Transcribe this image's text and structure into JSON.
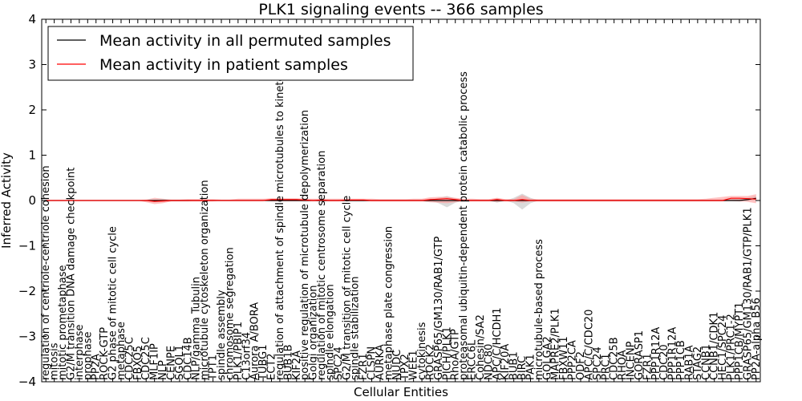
{
  "chart_data": {
    "type": "line",
    "title": "PLK1 signaling events -- 366 samples",
    "xlabel": "Cellular Entities",
    "ylabel": "Inferred Activity",
    "ylim": [
      -4,
      4
    ],
    "yticks": [
      -4,
      -3,
      -2,
      -1,
      0,
      1,
      2,
      3,
      4
    ],
    "ytick_labels": [
      "−4",
      "−3",
      "−2",
      "−1",
      "0",
      "1",
      "2",
      "3",
      "4"
    ],
    "legend": {
      "position": "top-left",
      "entries": [
        {
          "label": "Mean activity in all permuted samples",
          "color": "#000000"
        },
        {
          "label": "Mean activity in patient samples",
          "color": "#ff0000"
        }
      ]
    },
    "categories": [
      "regulation of centriole-centriole cohesion",
      "mitosis",
      "mitotic prometaphase",
      "G2/M transition DNA damage checkpoint",
      "interphase",
      "prophase",
      "PP2A",
      "ROCK-GTP",
      "G2 phase of mitotic cell cycle",
      "metaphase",
      "CDC25C",
      "FBXO5",
      "CDC25C",
      "MLF1IP",
      "NLP",
      "CENPE",
      "SGOL1",
      "CDC14B",
      "NLP/gamma Tubulin",
      "microtubule cytoskeleton organization",
      "TPT1",
      "spindle assembly",
      "chromosome segregation",
      "PLK1/PBIP1",
      "C13orf34",
      "Aurora A/BORA",
      "TUBG1",
      "ECT2",
      "regulation of attachment of spindle microtubules to kinetochore",
      "BUB1B",
      "KIF2A",
      "positive regulation of microtubule depolymerization",
      "Golgi organization",
      "regulation of mitotic centrosome separation",
      "spindle elongation",
      "SPC24",
      "G2/M transition of mitotic cell cycle",
      "spindle stabilization",
      "FZR1",
      "CLSPN",
      "AURKA",
      "metaphase plate congression",
      "NUDC",
      "TPX2",
      "WEE1",
      "cytokinesis",
      "ROCK2",
      "GRASP65/GM130/RAB1/GTP",
      "PICH/PLK1",
      "RhoA/GTP",
      "proteasomal ubiquitin-dependent protein catabolic process",
      "ERCC6L",
      "Cohesin/SA2",
      "NDC80",
      "APC/C/HCDH1",
      "KIF20A",
      "BUB1",
      "BIRC",
      "PAK1",
      "microtubule-based process",
      "GOLGA2",
      "MAPRE2/PLK1",
      "FBXW11",
      "PPP2CA",
      "ODF2",
      "APC/C/CDC20",
      "SPC24",
      "PRC1",
      "CDC25B",
      "RHOA",
      "INCENP",
      "GORASP1",
      "FZR1",
      "PPP1R12A",
      "CDC20",
      "PPP1R12A",
      "PPP1CB",
      "RAB1A",
      "STAG2",
      "CCNB1",
      "CCNB1/CDK1",
      "HEC1/SPC24",
      "PLK1/PRC1-2",
      "PPP1CB/MYPT1",
      "GRASP65/GM130/RAB1/GTP/PLK1",
      "PP2A-alpha B56"
    ],
    "series": [
      {
        "name": "Mean activity in all permuted samples",
        "color": "#000000",
        "values": [
          0,
          0,
          0,
          0,
          0,
          0,
          0,
          0,
          0,
          0,
          0,
          0,
          0,
          0,
          0,
          0,
          0,
          0,
          0,
          0,
          0,
          0,
          0,
          0,
          0,
          0,
          0,
          0,
          0,
          0,
          0,
          0,
          0,
          0,
          0,
          0,
          0,
          0,
          0,
          0,
          0,
          0,
          0,
          0,
          0,
          0,
          0,
          0,
          0,
          0,
          0,
          0,
          0,
          0,
          0,
          0,
          0,
          0,
          0,
          0,
          0,
          0,
          0,
          0,
          0,
          0,
          0,
          0,
          0,
          0,
          0,
          0,
          0,
          0,
          0,
          0,
          0,
          0,
          0,
          0,
          0,
          0,
          0,
          0,
          0.02,
          0.05
        ]
      },
      {
        "name": "Mean activity in patient samples",
        "color": "#ff0000",
        "values": [
          0,
          0,
          0,
          0,
          0,
          0,
          0,
          0,
          0,
          0,
          0,
          0,
          0,
          -0.02,
          -0.01,
          0,
          0,
          0,
          0,
          0,
          0,
          0,
          0,
          0,
          0,
          0,
          0,
          0.02,
          0.02,
          0.02,
          0.02,
          0.01,
          0,
          0.01,
          0,
          0,
          0.01,
          0.01,
          0.01,
          0,
          0,
          0,
          0,
          0,
          0,
          0,
          0.02,
          0.03,
          0.04,
          0.02,
          0,
          0,
          0,
          0,
          0.02,
          0,
          0,
          0.02,
          0,
          0,
          0,
          0,
          0,
          0,
          0,
          0,
          0,
          0,
          0,
          0,
          0,
          0,
          0,
          0,
          0,
          0,
          0,
          0,
          0,
          0,
          0,
          0,
          0.05,
          0.05,
          0.04,
          0.03
        ]
      }
    ],
    "bands": [
      {
        "name": "permuted spread",
        "color": "#bbbbbb",
        "lower": [
          0,
          0,
          0,
          0,
          0,
          0,
          0,
          0,
          0,
          0,
          0,
          0,
          0,
          -0.02,
          -0.03,
          -0.02,
          -0.02,
          -0.02,
          0,
          0,
          0,
          0,
          0,
          0,
          0,
          0,
          0,
          0,
          0,
          0,
          0,
          0,
          0,
          0,
          0,
          0,
          0,
          0,
          0,
          0,
          0,
          0,
          0,
          0,
          0,
          0,
          0,
          -0.06,
          -0.15,
          -0.05,
          0,
          0,
          0,
          0,
          -0.05,
          0,
          -0.06,
          -0.2,
          -0.06,
          0,
          0,
          0,
          0,
          0,
          0,
          0,
          0,
          0,
          0,
          0,
          0,
          0,
          0,
          0,
          0,
          0,
          0,
          0,
          0,
          0,
          0,
          0,
          0,
          0,
          0,
          0
        ],
        "upper": [
          0,
          0,
          0,
          0,
          0,
          0,
          0,
          0,
          0,
          0,
          0,
          0,
          0,
          0.02,
          0.03,
          0.02,
          0.02,
          0.02,
          0,
          0,
          0,
          0,
          0,
          0,
          0,
          0,
          0,
          0,
          0,
          0,
          0,
          0,
          0,
          0,
          0,
          0,
          0,
          0,
          0,
          0,
          0,
          0,
          0,
          0,
          0,
          0,
          0,
          0.06,
          0.1,
          0.05,
          0,
          0,
          0,
          0,
          0.05,
          0,
          0.06,
          0.15,
          0.06,
          0,
          0,
          0,
          0,
          0,
          0,
          0,
          0,
          0,
          0,
          0,
          0,
          0,
          0,
          0,
          0,
          0,
          0,
          0,
          0,
          0,
          0,
          0,
          0.05,
          0.05,
          0.06,
          0.1
        ]
      },
      {
        "name": "patient spread",
        "color": "#ff9999",
        "lower": [
          0,
          0,
          0,
          0,
          0,
          0,
          0,
          0,
          0,
          0,
          0,
          0,
          -0.04,
          -0.08,
          -0.06,
          -0.02,
          -0.02,
          -0.02,
          -0.02,
          -0.02,
          -0.02,
          0,
          0,
          0,
          0,
          0,
          0,
          -0.02,
          -0.02,
          -0.02,
          -0.02,
          -0.02,
          -0.02,
          -0.02,
          -0.02,
          -0.02,
          -0.02,
          -0.02,
          -0.02,
          -0.02,
          -0.02,
          -0.02,
          -0.02,
          -0.02,
          -0.02,
          -0.02,
          -0.04,
          -0.05,
          -0.06,
          -0.04,
          -0.02,
          -0.02,
          -0.02,
          -0.02,
          -0.03,
          -0.02,
          -0.02,
          -0.05,
          -0.02,
          -0.02,
          -0.02,
          -0.02,
          -0.02,
          -0.02,
          -0.02,
          -0.02,
          -0.02,
          -0.02,
          -0.02,
          -0.02,
          -0.02,
          -0.02,
          -0.02,
          -0.02,
          -0.02,
          -0.02,
          -0.02,
          -0.02,
          -0.02,
          -0.02,
          -0.02,
          -0.02,
          -0.01,
          -0.02,
          -0.03,
          -0.06
        ],
        "upper": [
          0,
          0,
          0,
          0,
          0,
          0,
          0,
          0,
          0,
          0,
          0,
          0,
          0.02,
          0.06,
          0.04,
          0.02,
          0.02,
          0.03,
          0.03,
          0.03,
          0.03,
          0.02,
          0.02,
          0.04,
          0.04,
          0.04,
          0.04,
          0.05,
          0.05,
          0.05,
          0.05,
          0.04,
          0.04,
          0.04,
          0.04,
          0.04,
          0.04,
          0.04,
          0.04,
          0.04,
          0.03,
          0.03,
          0.03,
          0.03,
          0.04,
          0.04,
          0.07,
          0.08,
          0.08,
          0.06,
          0.04,
          0.04,
          0.03,
          0.03,
          0.06,
          0.03,
          0.03,
          0.12,
          0.04,
          0.03,
          0.03,
          0.03,
          0.03,
          0.03,
          0.03,
          0.03,
          0.03,
          0.03,
          0.03,
          0.03,
          0.03,
          0.03,
          0.03,
          0.03,
          0.03,
          0.03,
          0.03,
          0.03,
          0.03,
          0.04,
          0.06,
          0.08,
          0.1,
          0.1,
          0.1,
          0.14
        ]
      }
    ]
  }
}
